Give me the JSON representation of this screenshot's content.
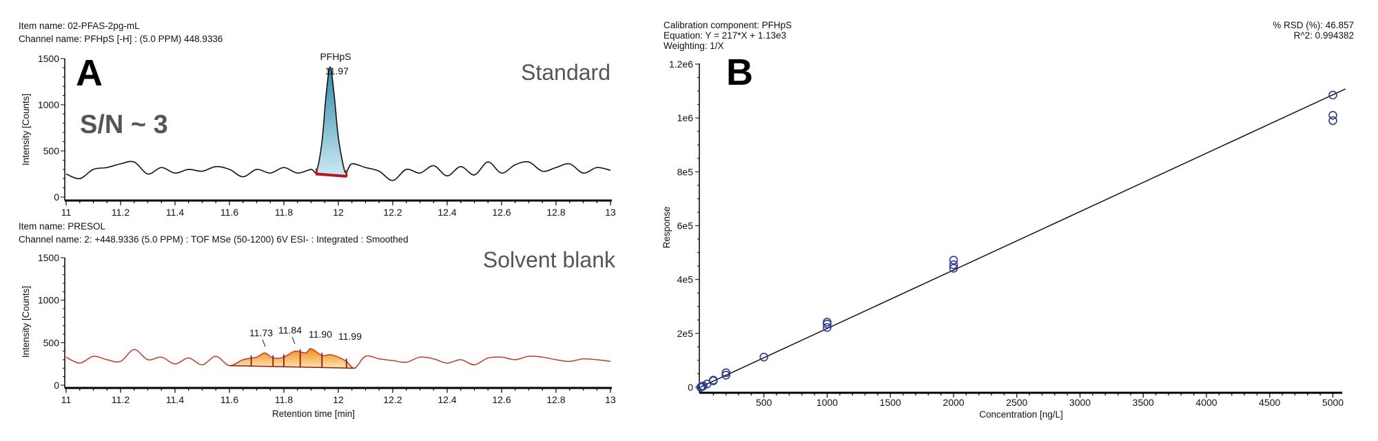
{
  "panel_labels": {
    "a": "A",
    "b": "B"
  },
  "annotations": {
    "signal_to_noise": "S/N ~ 3"
  },
  "colors": {
    "standard_trace": "#111111",
    "standard_peak_fill": "#7fc0d8",
    "integration_baseline": "#b3181b",
    "blank_trace": "#c0392b",
    "blank_peak_fill": "#f7a531",
    "calibration_points": "#2e3a8c",
    "fit_line": "#111111"
  },
  "chart_data": [
    {
      "type": "line",
      "item_name": "Item name: 02-PFAS-2pg-mL",
      "channel_name": "Channel name: PFHpS [-H] : (5.0 PPM) 448.9336",
      "tag": "Standard",
      "ylabel": "Intensity [Counts]",
      "xlabel": "",
      "xlim": [
        11,
        13
      ],
      "ylim": [
        0,
        1500
      ],
      "xticks": [
        "11",
        "11.2",
        "11.4",
        "11.6",
        "11.8",
        "12",
        "12.2",
        "12.4",
        "12.6",
        "12.8",
        "13"
      ],
      "yticks": [
        "0",
        "500",
        "1000",
        "1500"
      ],
      "peak": {
        "name": "PFHpS",
        "rt": "11.97",
        "start": 11.92,
        "end": 12.03,
        "apex": 1410
      },
      "x": [
        11.0,
        11.05,
        11.1,
        11.15,
        11.2,
        11.25,
        11.3,
        11.35,
        11.4,
        11.45,
        11.5,
        11.55,
        11.6,
        11.65,
        11.7,
        11.75,
        11.8,
        11.85,
        11.9,
        11.92,
        11.94,
        11.955,
        11.97,
        11.985,
        12.0,
        12.02,
        12.03,
        12.05,
        12.1,
        12.15,
        12.2,
        12.25,
        12.3,
        12.35,
        12.4,
        12.45,
        12.5,
        12.55,
        12.6,
        12.65,
        12.7,
        12.75,
        12.8,
        12.85,
        12.9,
        12.95,
        13.0
      ],
      "y": [
        250,
        200,
        300,
        320,
        360,
        380,
        250,
        320,
        260,
        300,
        280,
        330,
        300,
        220,
        300,
        260,
        320,
        260,
        300,
        280,
        600,
        1100,
        1410,
        1100,
        650,
        320,
        270,
        360,
        320,
        280,
        180,
        300,
        260,
        340,
        230,
        330,
        240,
        380,
        260,
        350,
        380,
        280,
        320,
        360,
        260,
        320,
        290
      ]
    },
    {
      "type": "line",
      "item_name": "Item name: PRESOL",
      "channel_name": "Channel name: 2: +448.9336 (5.0 PPM) : TOF MSe (50-1200) 6V ESI- : Integrated : Smoothed",
      "tag": "Solvent blank",
      "ylabel": "Intensity [Counts]",
      "xlabel": "Retention time [min]",
      "xlim": [
        11,
        13
      ],
      "ylim": [
        0,
        1500
      ],
      "xticks": [
        "11",
        "11.2",
        "11.4",
        "11.6",
        "11.8",
        "12",
        "12.2",
        "12.4",
        "12.6",
        "12.8",
        "13"
      ],
      "yticks": [
        "0",
        "500",
        "1000",
        "1500"
      ],
      "peaks": [
        "11.73",
        "11.84",
        "11.90",
        "11.99"
      ],
      "integration": {
        "start": 11.6,
        "end": 12.06,
        "start_level": 230,
        "end_level": 200,
        "drop_lines": [
          11.68,
          11.76,
          11.8,
          11.86,
          11.94,
          12.03
        ]
      },
      "x": [
        11.0,
        11.05,
        11.1,
        11.15,
        11.2,
        11.25,
        11.3,
        11.35,
        11.4,
        11.45,
        11.5,
        11.55,
        11.6,
        11.65,
        11.7,
        11.73,
        11.76,
        11.8,
        11.84,
        11.88,
        11.9,
        11.94,
        11.97,
        12.0,
        12.03,
        12.06,
        12.1,
        12.15,
        12.2,
        12.25,
        12.3,
        12.35,
        12.4,
        12.45,
        12.5,
        12.55,
        12.6,
        12.65,
        12.7,
        12.75,
        12.8,
        12.85,
        12.9,
        12.95,
        13.0
      ],
      "y": [
        330,
        260,
        340,
        300,
        280,
        420,
        300,
        330,
        250,
        320,
        240,
        340,
        230,
        300,
        330,
        380,
        320,
        330,
        400,
        380,
        430,
        350,
        360,
        330,
        280,
        200,
        340,
        310,
        290,
        270,
        330,
        310,
        260,
        300,
        240,
        320,
        330,
        300,
        340,
        330,
        300,
        280,
        310,
        300,
        280
      ]
    },
    {
      "type": "scatter",
      "calibration_component": "Calibration component: PFHpS",
      "equation": "Equation: Y = 217*X + 1.13e3",
      "weighting": "Weighting: 1/X",
      "rsd": "% RSD (%): 46.857",
      "r_squared": "R^2: 0.994382",
      "xlabel": "Concentration [ng/L]",
      "ylabel": "Response",
      "xlim": [
        0,
        5100
      ],
      "ylim": [
        0,
        1200000
      ],
      "xticks": [
        "500",
        "1000",
        "1500",
        "2000",
        "2500",
        "3000",
        "3500",
        "4000",
        "4500",
        "5000"
      ],
      "yticks": [
        "0",
        "2e5",
        "4e5",
        "6e5",
        "8e5",
        "1e6",
        "1.2e6"
      ],
      "fit": {
        "slope": 217,
        "intercept": 1130
      },
      "points": [
        [
          0,
          0
        ],
        [
          5,
          1500
        ],
        [
          10,
          2500
        ],
        [
          20,
          5000
        ],
        [
          50,
          12000
        ],
        [
          100,
          24000
        ],
        [
          100,
          26500
        ],
        [
          200,
          45000
        ],
        [
          200,
          54000
        ],
        [
          500,
          112000
        ],
        [
          1000,
          222000
        ],
        [
          1000,
          235000
        ],
        [
          1000,
          242000
        ],
        [
          2000,
          442000
        ],
        [
          2000,
          455000
        ],
        [
          2000,
          472000
        ],
        [
          5000,
          1085000
        ],
        [
          5000,
          1010000
        ],
        [
          5000,
          990000
        ]
      ]
    }
  ]
}
